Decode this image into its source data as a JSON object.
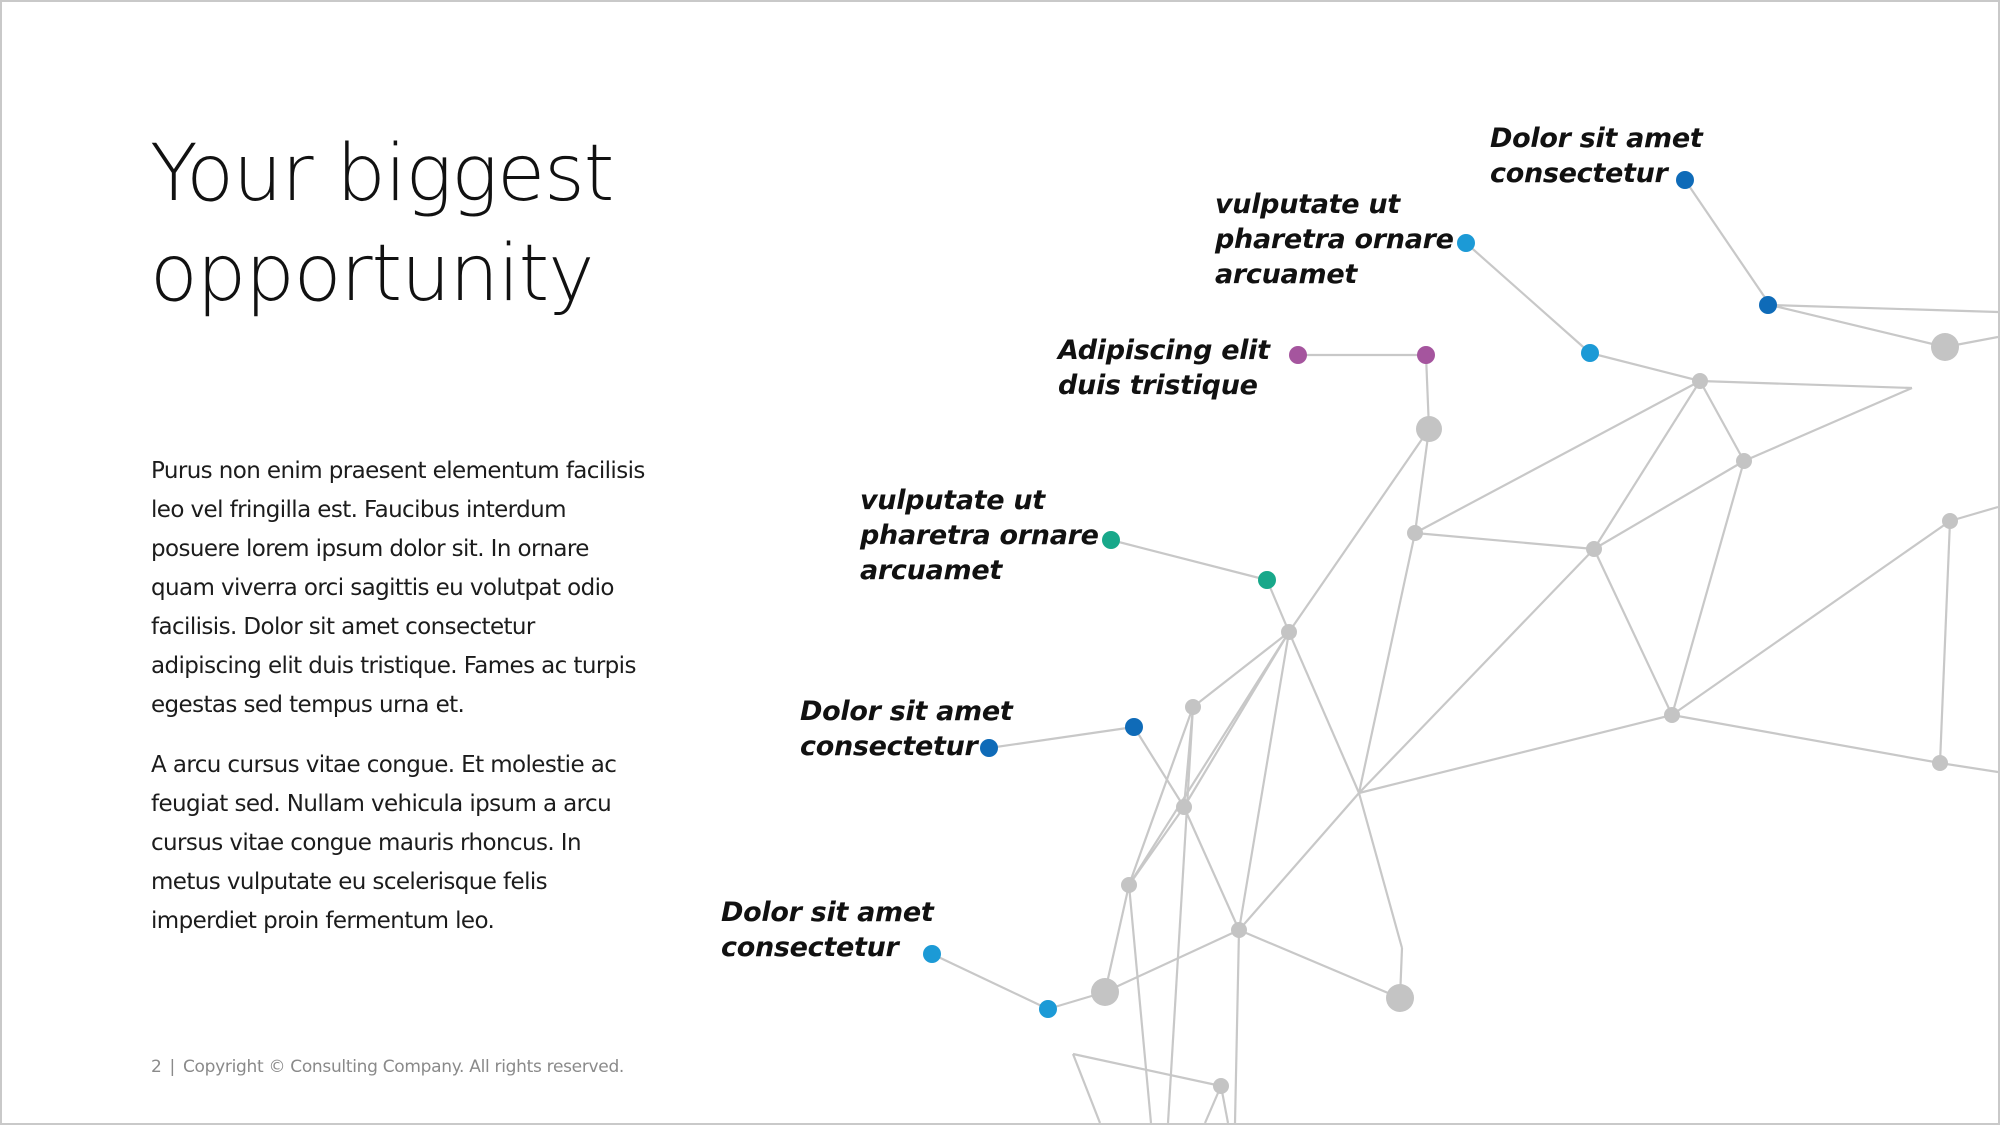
{
  "slide": {
    "title_lines": [
      "Your biggest",
      "opportunity"
    ],
    "paragraphs": [
      "Purus non enim praesent elementum facilisis leo vel fringilla est. Faucibus interdum posuere lorem ipsum dolor sit. In ornare quam viverra orci sagittis eu volutpat odio facilisis. Dolor sit amet consectetur adipiscing elit duis tristique. Fames ac turpis egestas sed tempus urna et.",
      "A arcu cursus vitae congue. Et molestie ac feugiat sed. Nullam vehicula ipsum a arcu cursus vitae congue mauris rhoncus. In metus vulputate eu scelerisque felis imperdiet proin fermentum leo."
    ],
    "footer": {
      "page_number": "2",
      "separator": "|",
      "copyright": "Copyright © Consulting Company. All rights reserved."
    }
  },
  "network": {
    "labels": [
      {
        "id": "label-1",
        "lines": [
          "Dolor sit amet",
          "consectetur"
        ],
        "color": "#0f6bb8"
      },
      {
        "id": "label-2",
        "lines": [
          "vulputate ut",
          "pharetra ornare",
          "arcuamet"
        ],
        "color": "#1c9ad6"
      },
      {
        "id": "label-3",
        "lines": [
          "Adipiscing elit",
          "duis tristique"
        ],
        "color": "#a5559e"
      },
      {
        "id": "label-4",
        "lines": [
          "vulputate ut",
          "pharetra ornare",
          "arcuamet"
        ],
        "color": "#18a88a"
      },
      {
        "id": "label-5",
        "lines": [
          "Dolor sit amet",
          "consectetur"
        ],
        "color": "#0f6bb8"
      },
      {
        "id": "label-6",
        "lines": [
          "Dolor sit amet",
          "consectetur"
        ],
        "color": "#1c9ad6"
      }
    ],
    "colors": {
      "edge": "#c8c8c8",
      "node": "#c4c4c4",
      "dark_blue": "#0f6bb8",
      "light_blue": "#1c9ad6",
      "purple": "#a5559e",
      "teal": "#18a88a"
    }
  }
}
